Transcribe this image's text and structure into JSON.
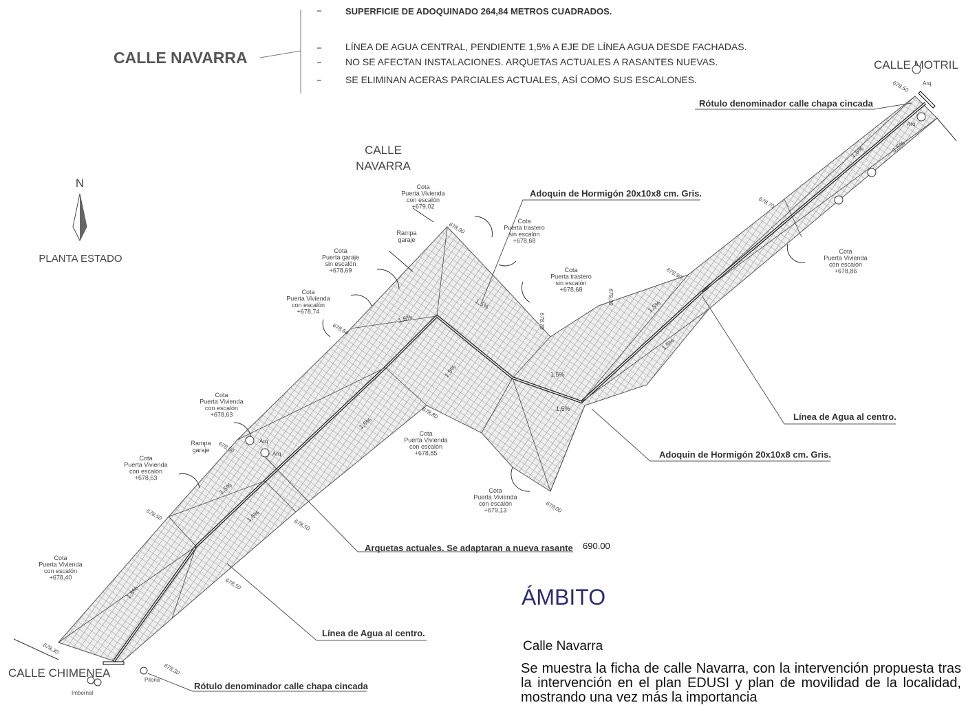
{
  "header": {
    "title": "CALLE NAVARRA",
    "notes": [
      "SUPERFICIE DE ADOQUINADO   264,84 METROS CUADRADOS.",
      "LÍNEA DE AGUA CENTRAL, PENDIENTE 1,5%  A EJE DE LÍNEA AGUA DESDE FACHADAS.",
      "NO SE AFECTAN INSTALACIONES. ARQUETAS ACTUALES A RASANTES NUEVAS.",
      "SE ELIMINAN ACERAS PARCIALES ACTUALES, ASÍ COMO SUS ESCALONES."
    ]
  },
  "streets": {
    "motril": "CALLE MOTRIL",
    "navarra": [
      "CALLE",
      "NAVARRA"
    ],
    "chimenea": "CALLE CHIMENEA"
  },
  "north": {
    "label": "N",
    "caption": "PLANTA ESTADO"
  },
  "callouts": [
    "Rótulo denominador calle chapa cincada",
    "Adoquin de Hormigón 20x10x8 cm. Gris.",
    "Línea de Agua al centro.",
    "Adoquin de Hormigón 20x10x8 cm. Gris.",
    "Arquetas actuales. Se adaptaran a nueva rasante",
    "Línea de Agua al centro.",
    "Rótulo denominador calle chapa cincada"
  ],
  "reference_value": "690.00",
  "cotas": [
    [
      "Cota",
      "Puerta Vivienda",
      "con escalón",
      "+679,02"
    ],
    [
      "Cota",
      "Puerta trastero",
      "sin escalón",
      "+678,68"
    ],
    [
      "Cota",
      "Puerta garaje",
      "sin escalón",
      "+678,69"
    ],
    [
      "Cota",
      "Puerta trastero",
      "sin escalón",
      "+678,68"
    ],
    [
      "Cota",
      "Puerta Vivienda",
      "con escalón",
      "+678,74"
    ],
    [
      "Cota",
      "Puerta Vivienda",
      "con escalón",
      "+678,86"
    ],
    [
      "Cota",
      "Puerta Vivienda",
      "con escalón",
      "+678,63"
    ],
    [
      "Cota",
      "Puerta Vivienda",
      "con escalón",
      "+678,85"
    ],
    [
      "Cota",
      "Puerta Vivienda",
      "con escalón",
      "+678,63"
    ],
    [
      "Cota",
      "Puerta Vivienda",
      "con escalón",
      "+679,13"
    ],
    [
      "Cota",
      "Puerta Vivienda",
      "con escalón",
      "+678,40"
    ]
  ],
  "elevations": [
    "678,50",
    "678,90",
    "678,70",
    "678,90",
    "679,00",
    "678,70",
    "678,64",
    "678,80",
    "678,50",
    "678,50",
    "678,50",
    "679,00",
    "678,50",
    "678,30",
    "678,30"
  ],
  "slopes": [
    "1,5%",
    "1,5%",
    "1,5%",
    "1,5%",
    "1,5%",
    "1,5%",
    "1,5%",
    "1,5%",
    "1,5%",
    "1,5%",
    "1,5%",
    "1,5%",
    "1,5%"
  ],
  "ramps": [
    [
      "Rampa",
      "garaje"
    ],
    [
      "Rampa",
      "garaje"
    ]
  ],
  "arquetas": [
    "Arq",
    "Arq",
    "Arq",
    "Arq"
  ],
  "misc": [
    "Pilona",
    "Imbornal"
  ],
  "section": {
    "title": "ÁMBITO",
    "subtitle": "Calle Navarra",
    "text": "Se muestra la ficha de calle Navarra, con la intervención propuesta tras la intervención en el plan EDUSI y plan de movilidad de la localidad, mostrando una vez más la importancia"
  }
}
